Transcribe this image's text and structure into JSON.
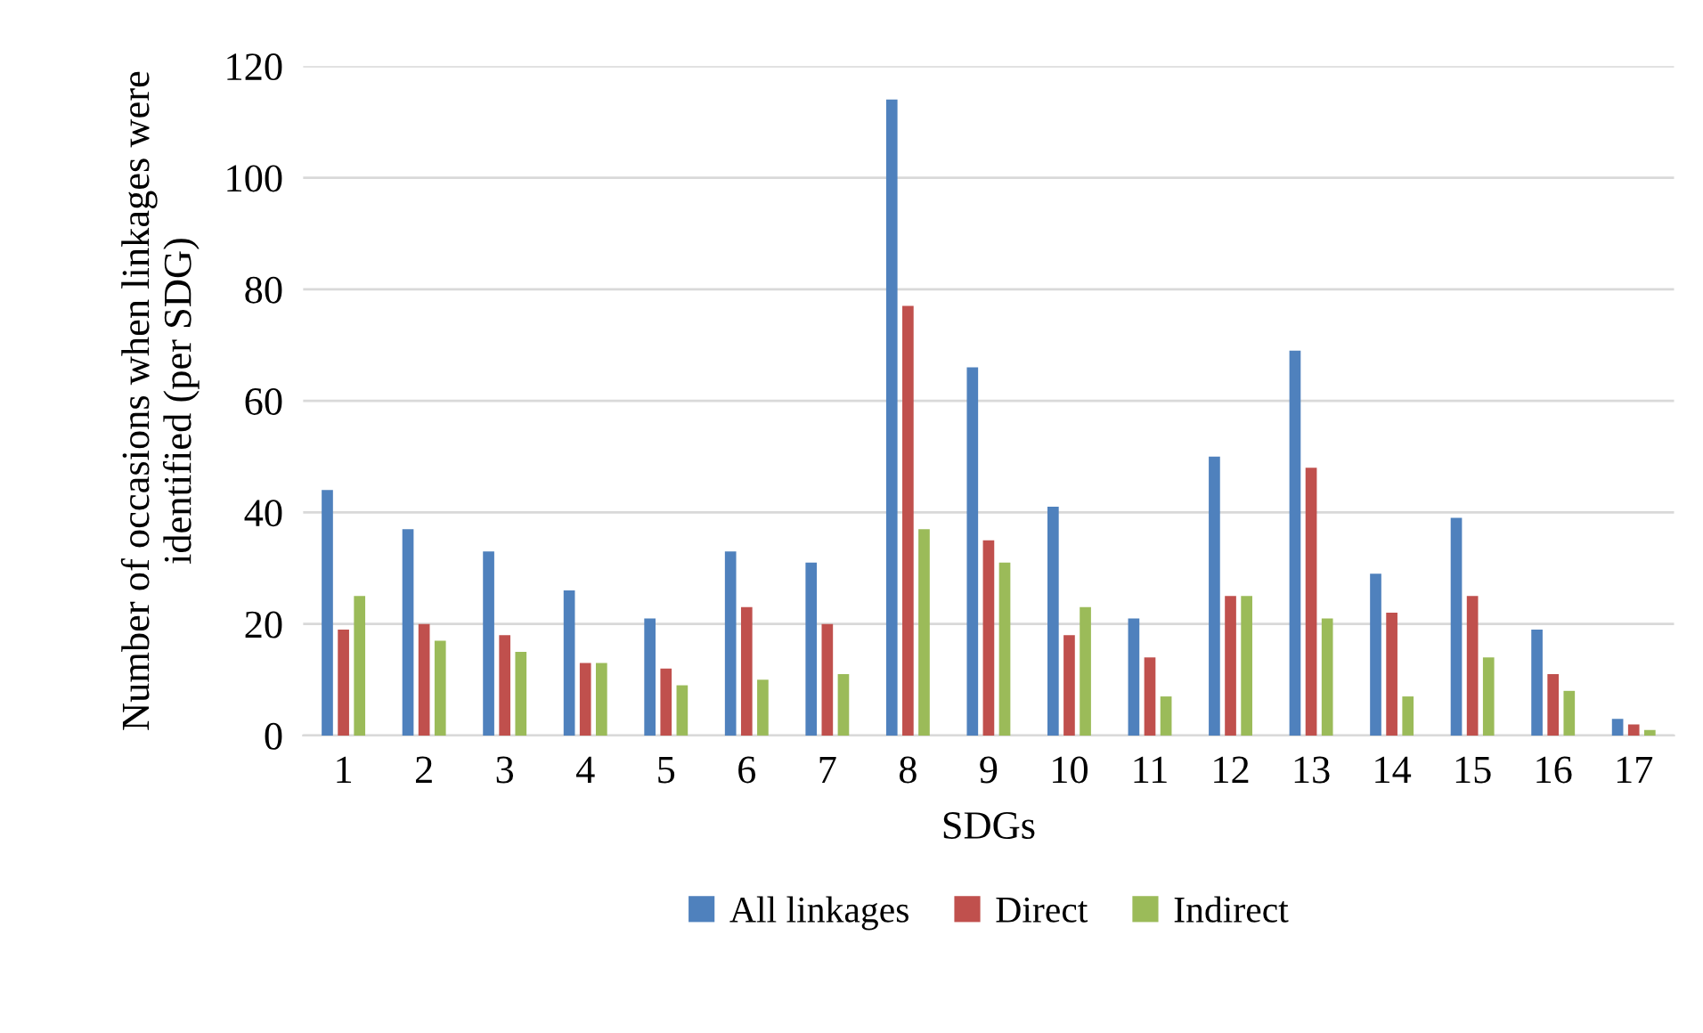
{
  "chart_data": {
    "type": "bar",
    "xlabel": "SDGs",
    "ylabel": "Number of occasions when linkages were identified (per SDG)",
    "categories": [
      "1",
      "2",
      "3",
      "4",
      "5",
      "6",
      "7",
      "8",
      "9",
      "10",
      "11",
      "12",
      "13",
      "14",
      "15",
      "16",
      "17"
    ],
    "series": [
      {
        "name": "All linkages",
        "color": "#4f81bd",
        "values": [
          44,
          37,
          33,
          26,
          21,
          33,
          31,
          114,
          66,
          41,
          21,
          50,
          69,
          29,
          39,
          19,
          3
        ]
      },
      {
        "name": "Direct",
        "color": "#c0504d",
        "values": [
          19,
          20,
          18,
          13,
          12,
          23,
          20,
          77,
          35,
          18,
          14,
          25,
          48,
          22,
          25,
          11,
          2
        ]
      },
      {
        "name": "Indirect",
        "color": "#9bbb59",
        "values": [
          25,
          17,
          15,
          13,
          9,
          10,
          11,
          37,
          31,
          23,
          7,
          25,
          21,
          7,
          14,
          8,
          1
        ]
      }
    ],
    "ylim": [
      0,
      120
    ],
    "yticks": [
      0,
      20,
      40,
      60,
      80,
      100,
      120
    ],
    "grid": "y",
    "legend": "bottom"
  }
}
